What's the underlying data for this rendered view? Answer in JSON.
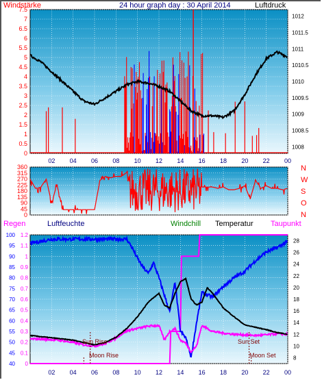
{
  "header": {
    "left": "Windstärke",
    "title": "24 hour graph day : 30 April 2014",
    "right": "Luftdruck"
  },
  "colors": {
    "red": "#ff0000",
    "blue": "#0000ff",
    "magenta": "#ff00ff",
    "black": "#000000",
    "green": "#008000",
    "dark_blue": "#000080",
    "sun_label": "#800000"
  },
  "chart_data": [
    {
      "type": "line",
      "name": "wind-pressure",
      "x_ticks": [
        "02",
        "04",
        "06",
        "08",
        "10",
        "12",
        "14",
        "16",
        "18",
        "20",
        "22",
        "00"
      ],
      "left_ticks": [
        "0",
        "0.5",
        "1",
        "1.5",
        "2",
        "2.5",
        "3",
        "3.5",
        "4",
        "4.5",
        "5",
        "5.5",
        "6",
        "6.5",
        "7",
        "7.5"
      ],
      "right_ticks": [
        "1008",
        "1008.5",
        "1009",
        "1009.5",
        "1010",
        "1010.5",
        "1011",
        "1011.5",
        "1012"
      ],
      "ylim_left": [
        0,
        7.5
      ],
      "ylim_right": [
        1007.8,
        1012.2
      ],
      "pressure": {
        "hours": [
          0,
          1,
          2,
          3,
          4,
          5,
          6,
          7,
          8,
          9,
          10,
          11,
          12,
          13,
          14,
          15,
          16,
          17,
          18,
          19,
          20,
          21,
          22,
          23,
          24
        ],
        "values": [
          1010.8,
          1010.6,
          1010.3,
          1010.0,
          1009.7,
          1009.4,
          1009.3,
          1009.5,
          1009.7,
          1009.9,
          1010.0,
          1009.95,
          1009.85,
          1009.7,
          1009.4,
          1009.1,
          1008.95,
          1008.95,
          1008.9,
          1009.1,
          1009.6,
          1010.2,
          1010.7,
          1010.9,
          1010.75
        ]
      },
      "wind_gust_peak": 7.5,
      "wind_active_hours": [
        8.8,
        16.2
      ],
      "wind_late_spikes_hours": [
        16.6,
        17.1,
        18.2,
        19.1,
        20.0,
        20.7,
        21.1,
        21.3
      ]
    },
    {
      "type": "line",
      "name": "wind-direction",
      "x_ticks": [
        "02",
        "04",
        "06",
        "08",
        "10",
        "12",
        "14",
        "16",
        "18",
        "20",
        "22",
        "00"
      ],
      "left_ticks": [
        "0",
        "45",
        "90",
        "135",
        "180",
        "225",
        "270",
        "315",
        "360"
      ],
      "right_labels": [
        "N",
        "W",
        "S",
        "O",
        "N"
      ],
      "ylim": [
        0,
        360
      ],
      "hours": [
        0,
        0.5,
        1,
        1.5,
        2,
        2.5,
        3,
        3.5,
        4,
        4.5,
        5,
        5.5,
        6,
        6.5,
        7,
        7.5,
        8,
        8.5,
        9,
        16,
        16.5,
        17,
        17.5,
        18,
        18.5,
        19,
        19.5,
        20,
        20.5,
        21,
        21.5,
        22,
        22.5,
        23,
        23.5,
        24
      ],
      "values": [
        270,
        200,
        210,
        270,
        90,
        230,
        40,
        40,
        40,
        40,
        40,
        40,
        40,
        260,
        290,
        280,
        290,
        290,
        320,
        210,
        210,
        210,
        200,
        210,
        190,
        190,
        200,
        220,
        120,
        260,
        200,
        220,
        200,
        200,
        190,
        200
      ]
    },
    {
      "type": "line",
      "name": "humidity-temperature",
      "x_ticks": [
        "02",
        "04",
        "06",
        "08",
        "10",
        "12",
        "14",
        "16",
        "18",
        "20",
        "22",
        "00"
      ],
      "left_labels": [
        "Regen",
        "Luftfeuchte"
      ],
      "top_labels": [
        "Windchill",
        "Temperatur",
        "Taupunkt"
      ],
      "rain_ticks": [
        "0",
        "0.1",
        "0.2",
        "0.3",
        "0.4",
        "0.5",
        "0.6",
        "0.7",
        "0.8",
        "0.9",
        "1",
        "1.1",
        "1.2"
      ],
      "humidity_ticks": [
        "40",
        "45",
        "50",
        "55",
        "60",
        "65",
        "70",
        "75",
        "80",
        "85",
        "90",
        "95",
        "100"
      ],
      "temp_ticks": [
        "8",
        "10",
        "12",
        "14",
        "16",
        "18",
        "20",
        "22",
        "24",
        "26",
        "28"
      ],
      "ylim_rain": [
        0,
        1.2
      ],
      "ylim_humidity": [
        40,
        100
      ],
      "ylim_temp": [
        7,
        29
      ],
      "events": {
        "sun_rise": "Sun Rise",
        "moon_rise": "Moon Rise",
        "sun_set": "Sun Set",
        "moon_set": "Moon Set"
      },
      "humidity": {
        "hours": [
          0,
          1,
          2,
          4,
          6,
          8,
          9,
          9.5,
          10,
          10.5,
          11,
          11.5,
          12,
          13,
          13.5,
          14,
          14.5,
          15,
          15.5,
          16,
          17,
          18,
          19,
          20,
          21,
          22,
          23,
          24
        ],
        "values": [
          96,
          97,
          98,
          98,
          98,
          98,
          98,
          94,
          89,
          85,
          82,
          87,
          80,
          64,
          78,
          55,
          52,
          43,
          59,
          73,
          71,
          76,
          80,
          83,
          88,
          92,
          94,
          97
        ]
      },
      "temperature": {
        "hours": [
          0,
          1,
          2,
          3,
          4,
          5,
          6,
          7,
          8,
          9,
          10,
          11,
          12,
          12.5,
          13,
          13.5,
          14,
          14.5,
          15,
          15.5,
          16,
          16.5,
          17,
          18,
          19,
          20,
          21,
          22,
          23,
          24
        ],
        "values": [
          11.8,
          11.6,
          11.4,
          11.2,
          11.0,
          10.6,
          10.2,
          10.6,
          11.5,
          13.0,
          15.0,
          17.5,
          19.0,
          17.0,
          16.5,
          19.0,
          21.0,
          21.5,
          18.0,
          17.0,
          17.5,
          20.0,
          19.0,
          16.5,
          15.0,
          13.6,
          13.2,
          12.8,
          12.3,
          12.0
        ]
      },
      "dewpoint": {
        "hours": [
          0,
          1,
          2,
          3,
          4,
          5,
          6,
          7,
          8,
          9,
          10,
          11,
          12,
          12.5,
          13,
          13.5,
          14,
          14.5,
          15,
          15.5,
          16,
          16.5,
          17,
          18,
          19,
          20,
          21,
          22,
          23,
          24
        ],
        "values": [
          11.2,
          11.2,
          11.1,
          10.9,
          10.6,
          10.2,
          10.0,
          10.4,
          11.4,
          12.6,
          13.0,
          13.4,
          13.5,
          11.0,
          12.5,
          13.0,
          11.0,
          10.5,
          9.0,
          10.0,
          13.5,
          13.0,
          12.5,
          12.2,
          12.0,
          11.9,
          11.8,
          11.9,
          12.1,
          12.0
        ]
      },
      "rain_cumulative": {
        "hours": [
          0,
          13,
          13.1,
          14,
          14.1,
          15.7,
          15.8,
          24
        ],
        "values": [
          0,
          0,
          0.3,
          0.3,
          1.0,
          1.0,
          1.2,
          1.2
        ]
      }
    }
  ]
}
